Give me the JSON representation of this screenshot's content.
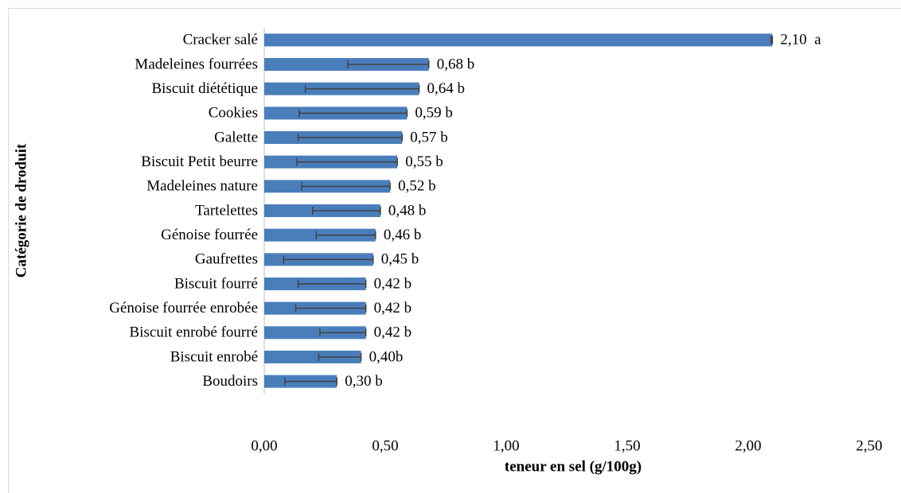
{
  "chart_data": {
    "type": "barh",
    "ylabel": "Catégorie de droduit",
    "xlabel": "teneur en sel (g/100g)",
    "categories": [
      "Cracker salé",
      "Madeleines fourrées",
      "Biscuit diététique",
      "Cookies",
      "Galette",
      "Biscuit Petit beurre",
      "Madeleines nature",
      "Tartelettes",
      "Génoise fourrée",
      "Gaufrettes",
      "Biscuit fourré",
      "Génoise fourrée enrobée",
      "Biscuit enrobé fourré",
      "Biscuit enrobé",
      "Boudoirs"
    ],
    "values": [
      2.1,
      0.68,
      0.64,
      0.59,
      0.57,
      0.55,
      0.52,
      0.48,
      0.46,
      0.45,
      0.42,
      0.42,
      0.42,
      0.4,
      0.3
    ],
    "errors": [
      0.005,
      0.335,
      0.47,
      0.445,
      0.43,
      0.415,
      0.365,
      0.28,
      0.245,
      0.37,
      0.28,
      0.29,
      0.19,
      0.175,
      0.215
    ],
    "value_labels": [
      "2,10  a",
      "0,68 b",
      "0,64 b",
      "0,59 b",
      "0,57 b",
      "0,55 b",
      "0,52 b",
      "0,48 b",
      "0,46 b",
      "0,45 b",
      "0,42 b",
      "0,42 b",
      "0,42 b",
      "0,40b",
      "0,30 b"
    ],
    "color": "#4a7ebb",
    "error_color": "#404040",
    "xlim": [
      0,
      2.5
    ],
    "xticks": [
      {
        "value": 0,
        "label": "0,00"
      },
      {
        "value": 0.5,
        "label": "0,50"
      },
      {
        "value": 1,
        "label": "1,00"
      },
      {
        "value": 1.5,
        "label": "1,50"
      },
      {
        "value": 2,
        "label": "2,00"
      },
      {
        "value": 2.5,
        "label": "2,50"
      }
    ],
    "grid": false
  }
}
